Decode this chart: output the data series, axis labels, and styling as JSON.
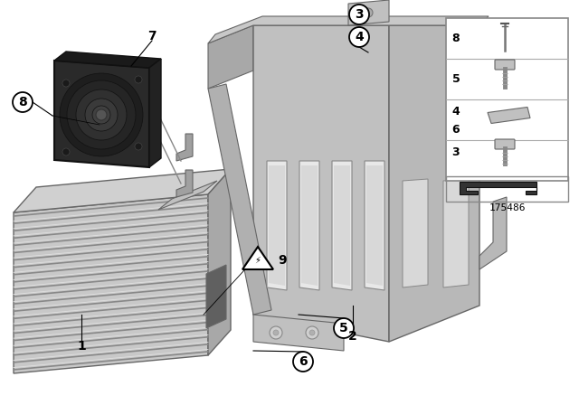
{
  "bg_color": "#ffffff",
  "part_number": "175486",
  "gray_lightest": "#e8e8e8",
  "gray_light": "#c8c8c8",
  "gray_med": "#b0b0b0",
  "gray_dark": "#888888",
  "gray_darker": "#666666",
  "gray_darkest": "#444444",
  "black": "#1a1a1a",
  "fan_dark": "#282828",
  "fan_darker": "#1a1a1a"
}
